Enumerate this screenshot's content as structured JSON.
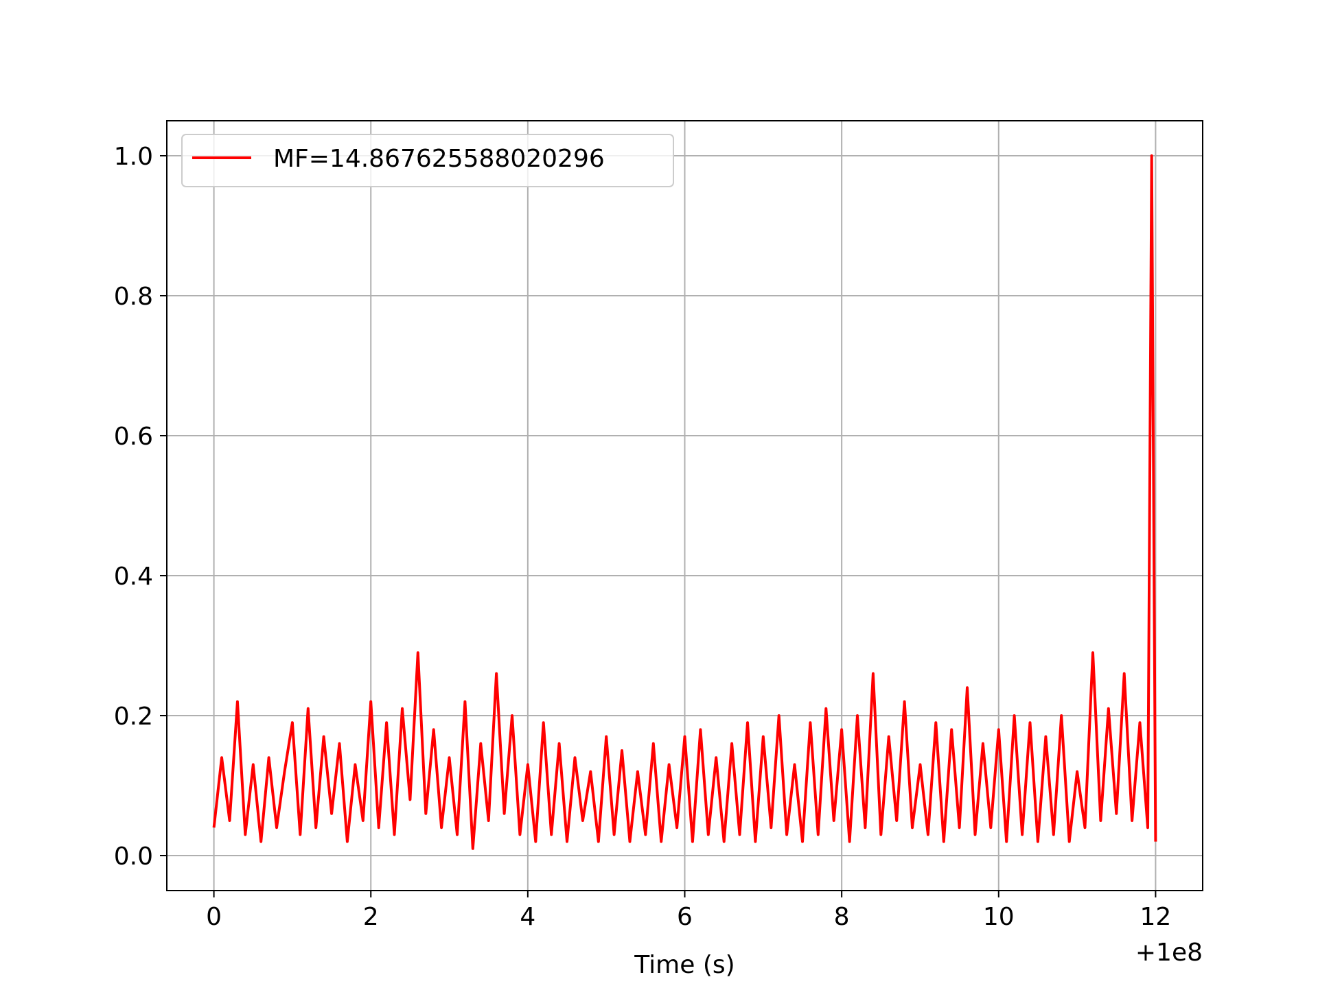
{
  "chart_data": {
    "type": "line",
    "title": "",
    "xlabel": "Time (s)",
    "ylabel": "",
    "x_offset_label": "+1e8",
    "xlim": [
      -0.6,
      12.6
    ],
    "ylim": [
      -0.05,
      1.05
    ],
    "xticks": [
      0,
      2,
      4,
      6,
      8,
      10,
      12
    ],
    "xtick_labels": [
      "0",
      "2",
      "4",
      "6",
      "8",
      "10",
      "12"
    ],
    "yticks": [
      0.0,
      0.2,
      0.4,
      0.6,
      0.8,
      1.0
    ],
    "ytick_labels": [
      "0.0",
      "0.2",
      "0.4",
      "0.6",
      "0.8",
      "1.0"
    ],
    "grid": true,
    "legend_position": "upper-left",
    "series": [
      {
        "name": "MF=14.867625588020296",
        "color": "#ff0000",
        "x": [
          0.0,
          0.1,
          0.2,
          0.3,
          0.4,
          0.5,
          0.6,
          0.7,
          0.8,
          0.9,
          1.0,
          1.1,
          1.2,
          1.3,
          1.4,
          1.5,
          1.6,
          1.7,
          1.8,
          1.9,
          2.0,
          2.1,
          2.2,
          2.3,
          2.4,
          2.5,
          2.6,
          2.7,
          2.8,
          2.9,
          3.0,
          3.1,
          3.2,
          3.3,
          3.4,
          3.5,
          3.6,
          3.7,
          3.8,
          3.9,
          4.0,
          4.1,
          4.2,
          4.3,
          4.4,
          4.5,
          4.6,
          4.7,
          4.8,
          4.9,
          5.0,
          5.1,
          5.2,
          5.3,
          5.4,
          5.5,
          5.6,
          5.7,
          5.8,
          5.9,
          6.0,
          6.1,
          6.2,
          6.3,
          6.4,
          6.5,
          6.6,
          6.7,
          6.8,
          6.9,
          7.0,
          7.1,
          7.2,
          7.3,
          7.4,
          7.5,
          7.6,
          7.7,
          7.8,
          7.9,
          8.0,
          8.1,
          8.2,
          8.3,
          8.4,
          8.5,
          8.6,
          8.7,
          8.8,
          8.9,
          9.0,
          9.1,
          9.2,
          9.3,
          9.4,
          9.5,
          9.6,
          9.7,
          9.8,
          9.9,
          10.0,
          10.1,
          10.2,
          10.3,
          10.4,
          10.5,
          10.6,
          10.7,
          10.8,
          10.9,
          11.0,
          11.1,
          11.2,
          11.3,
          11.4,
          11.5,
          11.6,
          11.7,
          11.8,
          11.9,
          11.95,
          12.0
        ],
        "y": [
          0.04,
          0.14,
          0.05,
          0.22,
          0.03,
          0.13,
          0.02,
          0.14,
          0.04,
          0.12,
          0.19,
          0.03,
          0.21,
          0.04,
          0.17,
          0.06,
          0.16,
          0.02,
          0.13,
          0.05,
          0.22,
          0.04,
          0.19,
          0.03,
          0.21,
          0.08,
          0.29,
          0.06,
          0.18,
          0.04,
          0.14,
          0.03,
          0.22,
          0.01,
          0.16,
          0.05,
          0.26,
          0.06,
          0.2,
          0.03,
          0.13,
          0.02,
          0.19,
          0.03,
          0.16,
          0.02,
          0.14,
          0.05,
          0.12,
          0.02,
          0.17,
          0.03,
          0.15,
          0.02,
          0.12,
          0.03,
          0.16,
          0.02,
          0.13,
          0.04,
          0.17,
          0.02,
          0.18,
          0.03,
          0.14,
          0.02,
          0.16,
          0.03,
          0.19,
          0.02,
          0.17,
          0.04,
          0.2,
          0.03,
          0.13,
          0.02,
          0.19,
          0.03,
          0.21,
          0.05,
          0.18,
          0.02,
          0.2,
          0.04,
          0.26,
          0.03,
          0.17,
          0.05,
          0.22,
          0.04,
          0.13,
          0.03,
          0.19,
          0.02,
          0.18,
          0.04,
          0.24,
          0.03,
          0.16,
          0.04,
          0.18,
          0.02,
          0.2,
          0.03,
          0.19,
          0.02,
          0.17,
          0.03,
          0.2,
          0.02,
          0.12,
          0.04,
          0.29,
          0.05,
          0.21,
          0.06,
          0.26,
          0.05,
          0.19,
          0.04,
          1.0,
          0.02
        ]
      }
    ]
  }
}
